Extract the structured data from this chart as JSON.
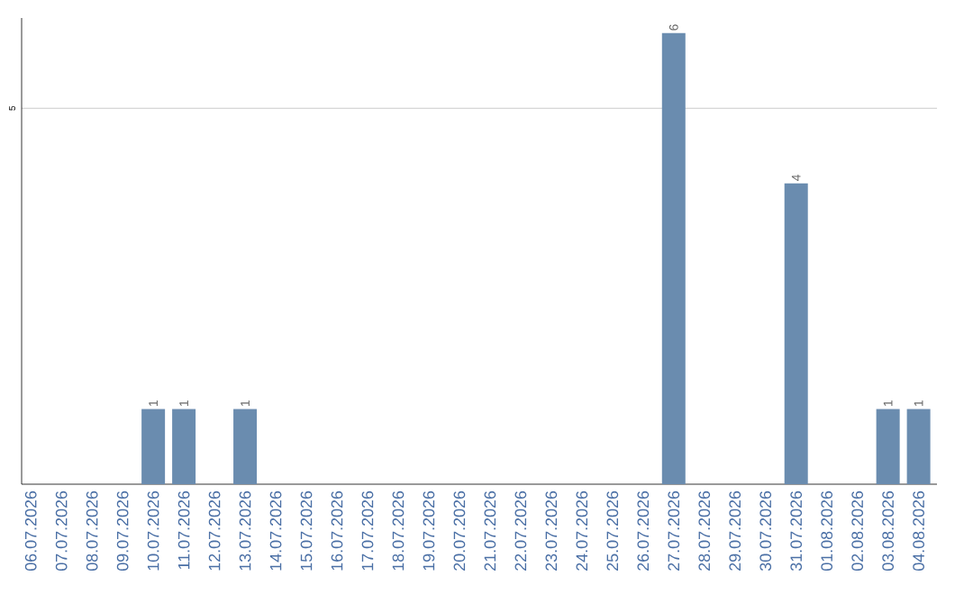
{
  "chart_data": {
    "type": "bar",
    "categories": [
      "06.07.2026",
      "07.07.2026",
      "08.07.2026",
      "09.07.2026",
      "10.07.2026",
      "11.07.2026",
      "12.07.2026",
      "13.07.2026",
      "14.07.2026",
      "15.07.2026",
      "16.07.2026",
      "17.07.2026",
      "18.07.2026",
      "19.07.2026",
      "20.07.2026",
      "21.07.2026",
      "22.07.2026",
      "23.07.2026",
      "24.07.2026",
      "25.07.2026",
      "26.07.2026",
      "27.07.2026",
      "28.07.2026",
      "29.07.2026",
      "30.07.2026",
      "31.07.2026",
      "01.08.2026",
      "02.08.2026",
      "03.08.2026",
      "04.08.2026"
    ],
    "values": [
      0,
      0,
      0,
      0,
      1,
      1,
      0,
      1,
      0,
      0,
      0,
      0,
      0,
      0,
      0,
      0,
      0,
      0,
      0,
      0,
      0,
      6,
      0,
      0,
      0,
      4,
      0,
      0,
      1,
      1
    ],
    "color": "#6a8caf",
    "ylim": [
      0,
      6.2
    ],
    "yticks": [
      5
    ],
    "grid": "y",
    "value_labels": [
      null,
      null,
      null,
      null,
      "1",
      "1",
      null,
      "1",
      null,
      null,
      null,
      null,
      null,
      null,
      null,
      null,
      null,
      null,
      null,
      null,
      null,
      "6",
      null,
      null,
      null,
      "4",
      null,
      null,
      "1",
      "1"
    ]
  }
}
